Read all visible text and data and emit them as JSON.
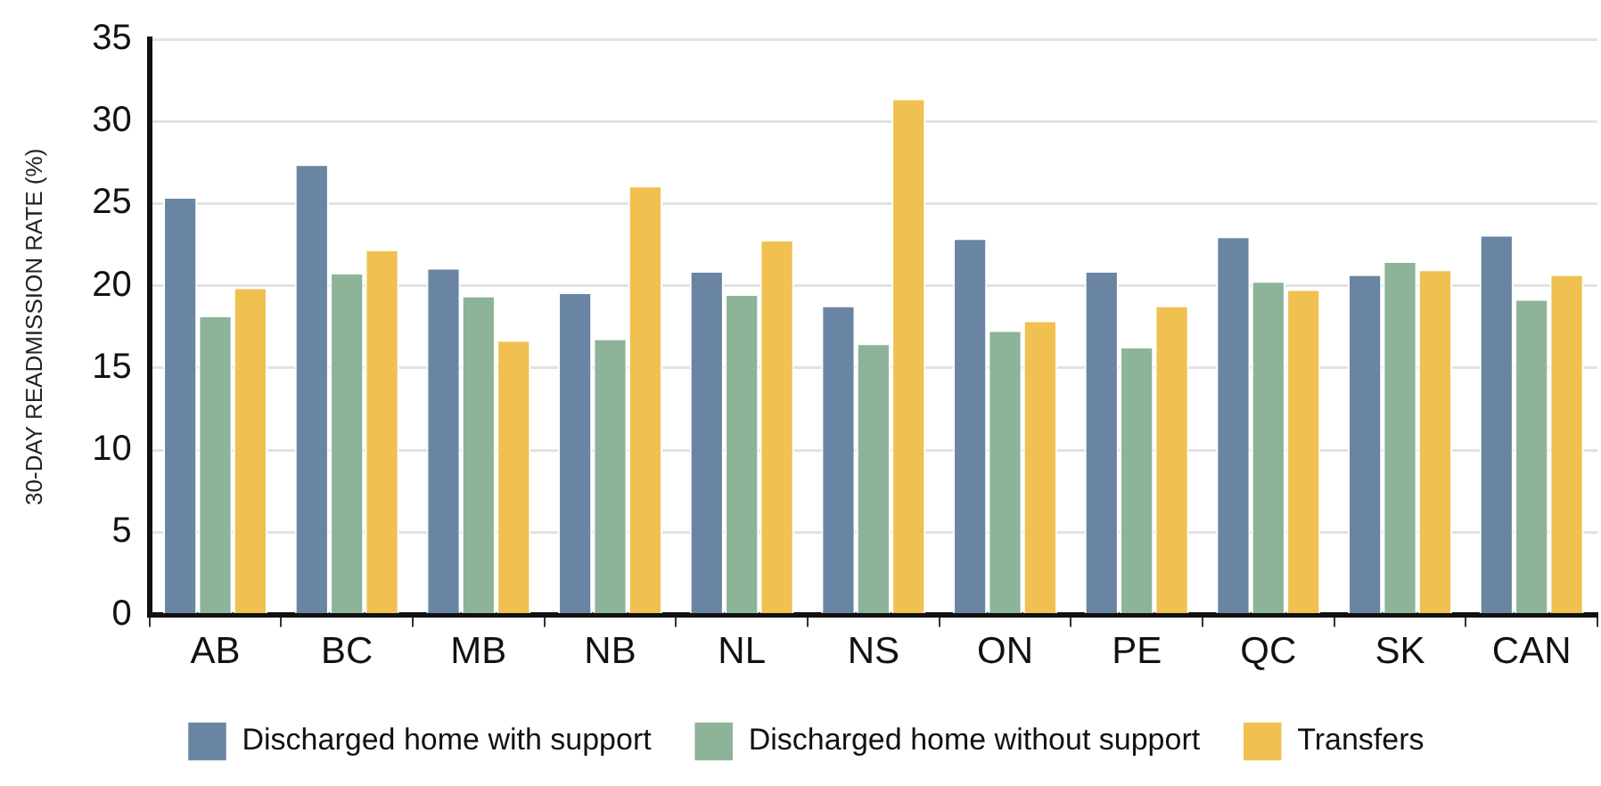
{
  "chart_data": {
    "type": "bar",
    "ylabel": "30-DAY READMISSION RATE (%)",
    "categories": [
      "AB",
      "BC",
      "MB",
      "NB",
      "NL",
      "NS",
      "ON",
      "PE",
      "QC",
      "SK",
      "CAN"
    ],
    "series": [
      {
        "name": "Discharged home with support",
        "color": "#6a85a3",
        "values": [
          25.4,
          27.4,
          21.1,
          19.6,
          20.9,
          18.8,
          22.9,
          20.9,
          23.0,
          20.7,
          23.1
        ]
      },
      {
        "name": "Discharged home without support",
        "color": "#8db398",
        "values": [
          18.2,
          20.8,
          19.4,
          16.8,
          19.5,
          16.5,
          17.3,
          16.3,
          20.3,
          21.5,
          19.2
        ]
      },
      {
        "name": "Transfers",
        "color": "#f0c050",
        "values": [
          19.9,
          22.2,
          16.7,
          26.1,
          22.8,
          31.4,
          17.9,
          18.8,
          19.8,
          21.0,
          20.7
        ]
      }
    ],
    "ylim": [
      0,
      35
    ],
    "yticks": [
      0,
      5,
      10,
      15,
      20,
      25,
      30,
      35
    ],
    "grid": "y",
    "legend": "bottom"
  }
}
